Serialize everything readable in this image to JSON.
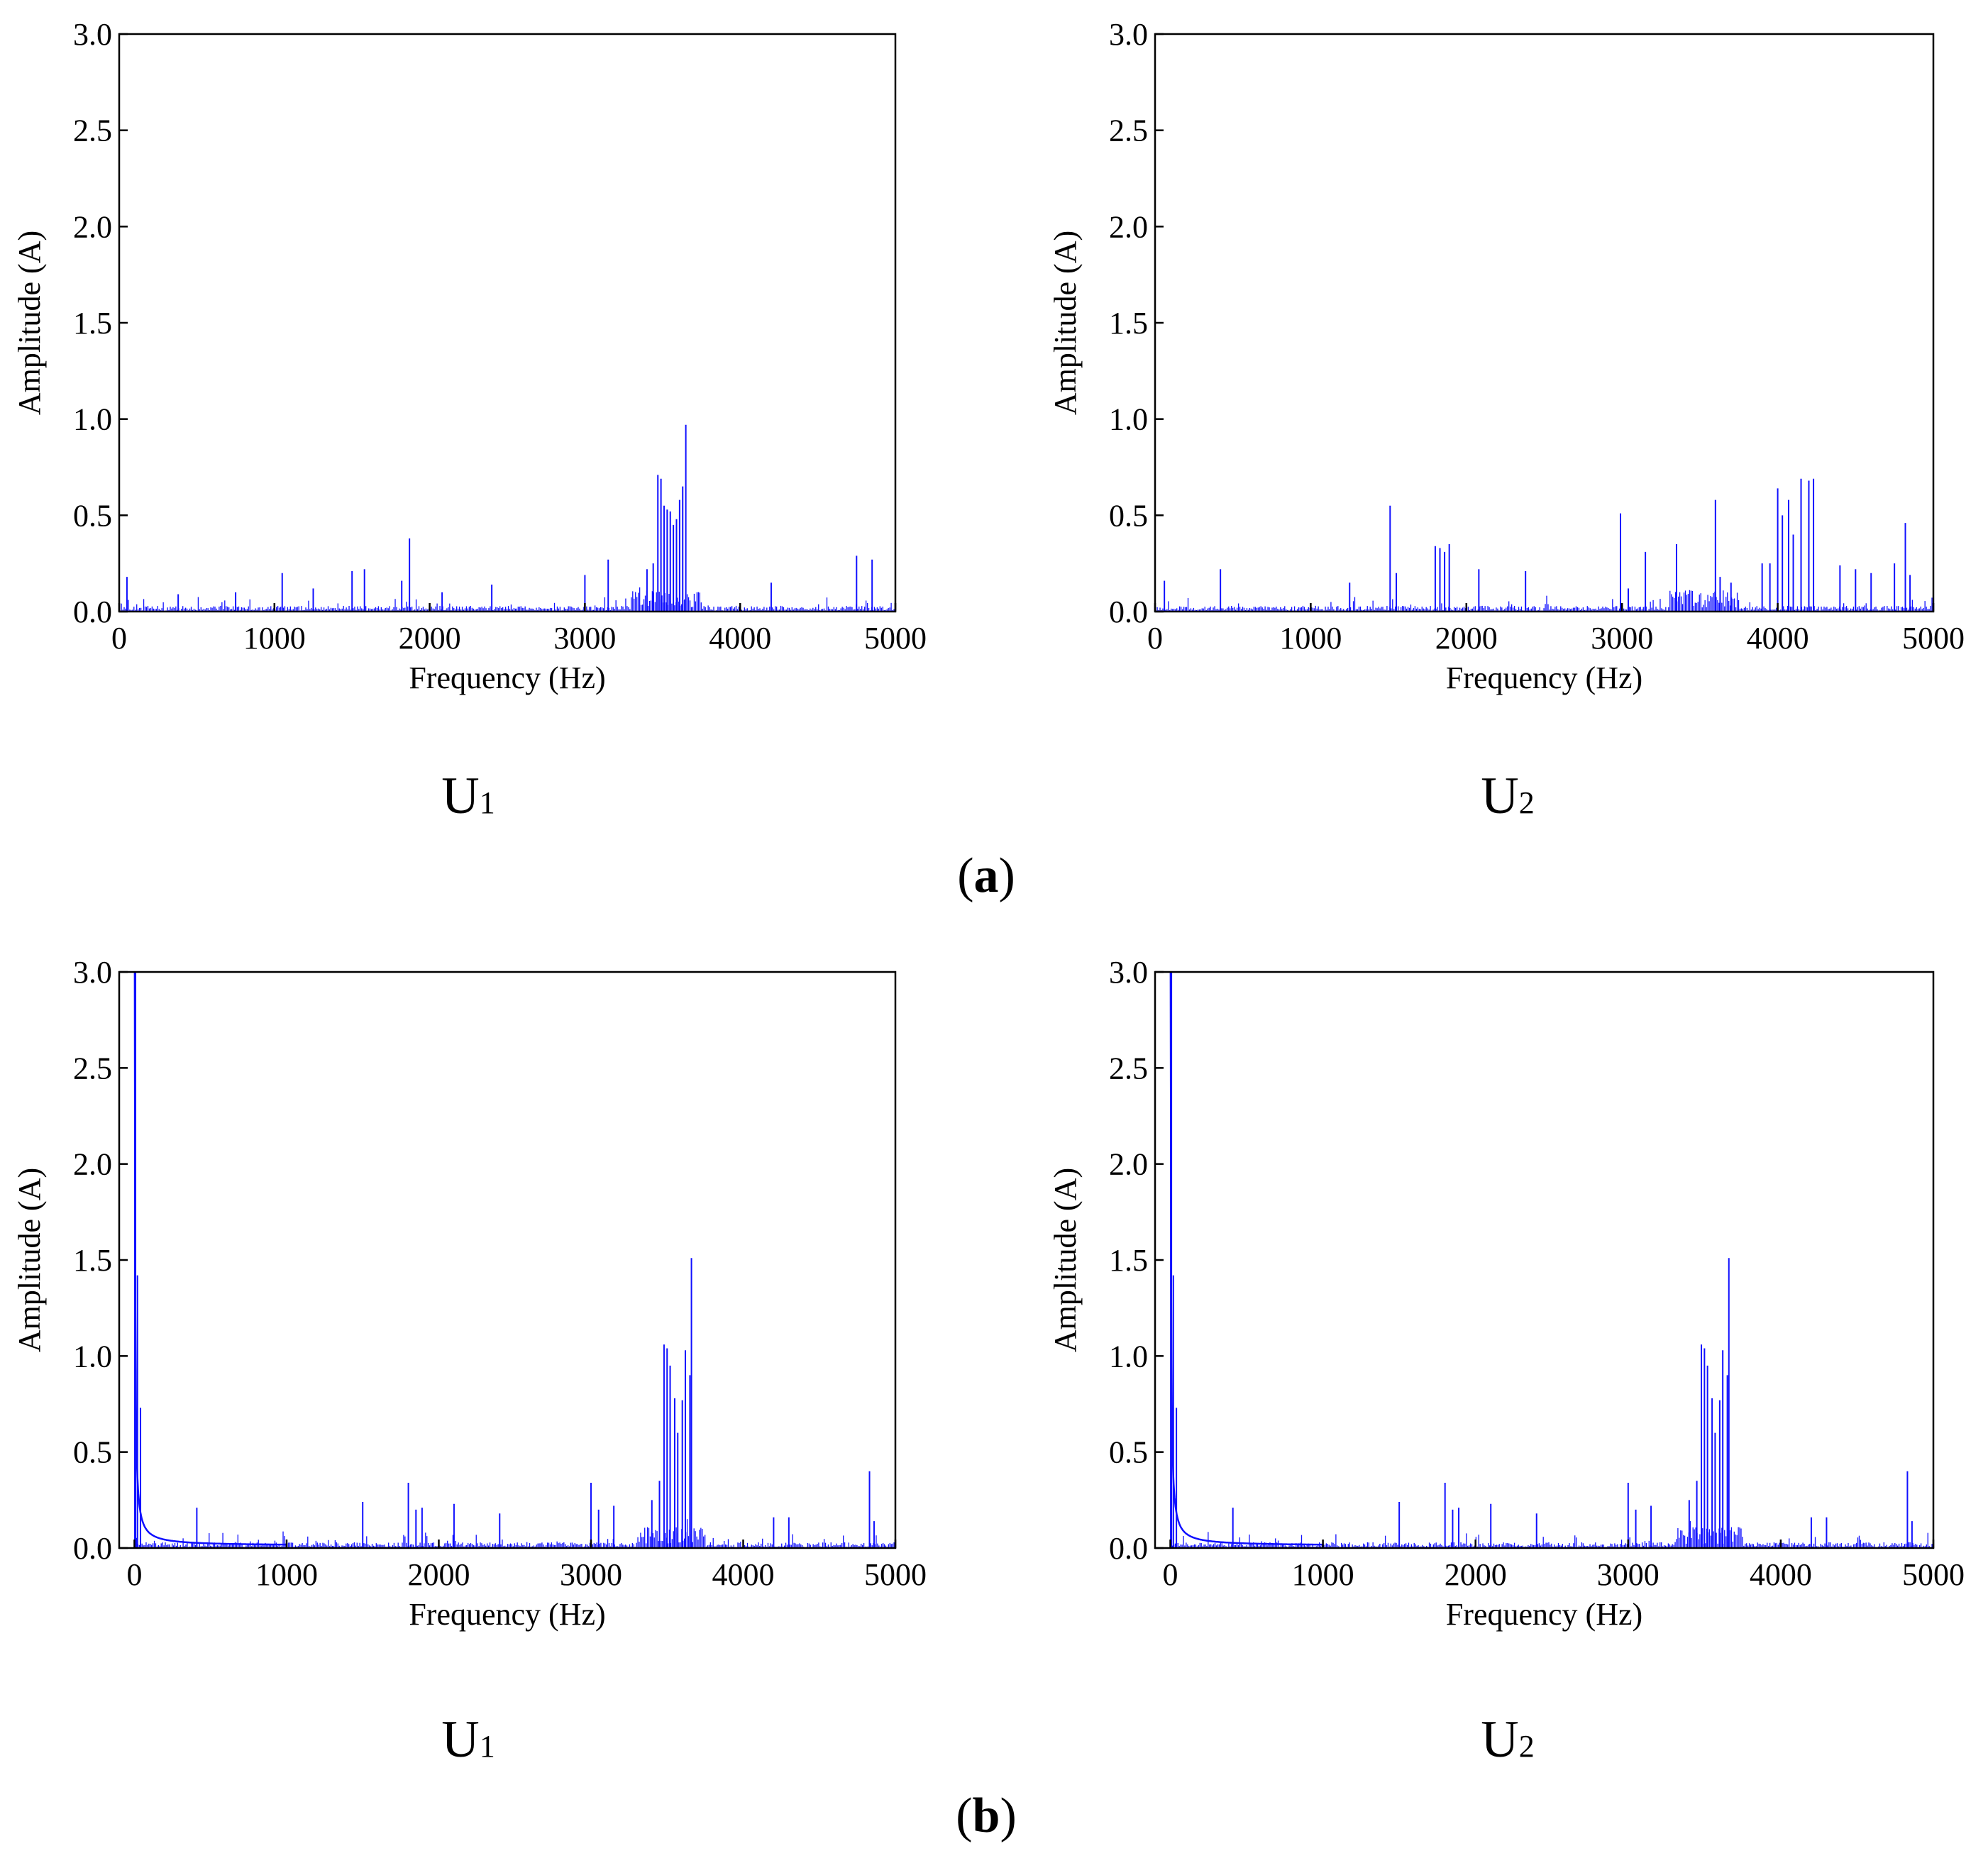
{
  "colors": {
    "spectrum": "#1010ff",
    "axis": "#000000"
  },
  "panels": {
    "a": {
      "label_open": "(",
      "label_letter": "a",
      "label_close": ")"
    },
    "b": {
      "label_open": "(",
      "label_letter": "b",
      "label_close": ")"
    }
  },
  "chart_data": [
    {
      "id": "a-U1",
      "type": "bar",
      "title": "",
      "caption_main": "U",
      "caption_sub": "1",
      "xlabel": "Frequency (Hz)",
      "ylabel": "Amplitude (A)",
      "xlim": [
        0,
        5000
      ],
      "ylim": [
        0,
        3.0
      ],
      "xticks": [
        "0",
        "1000",
        "2000",
        "3000",
        "4000",
        "5000"
      ],
      "yticks": [
        "0.0",
        "0.5",
        "1.0",
        "1.5",
        "2.0",
        "2.5",
        "3.0"
      ],
      "has_dc_decay": false,
      "x": [
        50,
        380,
        750,
        1050,
        1250,
        1500,
        1580,
        1820,
        1870,
        2080,
        2400,
        3000,
        3150,
        3400,
        3440,
        3470,
        3490,
        3510,
        3530,
        3550,
        3570,
        3590,
        3610,
        3630,
        3650,
        4200,
        4750,
        4850
      ],
      "values": [
        0.18,
        0.09,
        0.1,
        0.2,
        0.12,
        0.21,
        0.22,
        0.16,
        0.38,
        0.1,
        0.14,
        0.19,
        0.27,
        0.22,
        0.25,
        0.71,
        0.69,
        0.55,
        0.53,
        0.52,
        0.45,
        0.48,
        0.58,
        0.65,
        0.97,
        0.15,
        0.29,
        0.27
      ]
    },
    {
      "id": "a-U2",
      "type": "bar",
      "title": "",
      "caption_main": "U",
      "caption_sub": "2",
      "xlabel": "Frequency (Hz)",
      "ylabel": "Amplitude (A)",
      "xlim": [
        0,
        5000
      ],
      "ylim": [
        0,
        3.0
      ],
      "xticks": [
        "0",
        "1000",
        "2000",
        "3000",
        "4000",
        "5000"
      ],
      "yticks": [
        "0.0",
        "0.5",
        "1.0",
        "1.5",
        "2.0",
        "2.5",
        "3.0"
      ],
      "has_dc_decay": false,
      "x": [
        60,
        420,
        1250,
        1510,
        1550,
        1800,
        1830,
        1860,
        1890,
        2080,
        2380,
        2990,
        3040,
        3150,
        3350,
        3600,
        3630,
        3700,
        3900,
        3950,
        4000,
        4030,
        4070,
        4100,
        4150,
        4200,
        4230,
        4400,
        4500,
        4600,
        4750,
        4820,
        4850
      ],
      "values": [
        0.16,
        0.22,
        0.15,
        0.55,
        0.2,
        0.34,
        0.33,
        0.31,
        0.35,
        0.22,
        0.21,
        0.51,
        0.12,
        0.31,
        0.35,
        0.58,
        0.18,
        0.15,
        0.25,
        0.25,
        0.64,
        0.5,
        0.58,
        0.4,
        0.69,
        0.68,
        0.69,
        0.24,
        0.22,
        0.2,
        0.25,
        0.46,
        0.19
      ]
    },
    {
      "id": "b-U1",
      "type": "bar",
      "title": "",
      "caption_main": "U",
      "caption_sub": "1",
      "xlabel": "Frequency (Hz)",
      "ylabel": "Amplitude (A)",
      "xlim": [
        -100,
        5000
      ],
      "ylim": [
        0,
        3.0
      ],
      "xticks": [
        "0",
        "1000",
        "2000",
        "3000",
        "4000",
        "5000"
      ],
      "yticks": [
        "0.0",
        "0.5",
        "1.0",
        "1.5",
        "2.0",
        "2.5",
        "3.0"
      ],
      "has_dc_decay": true,
      "dc_peak": 3.0,
      "x": [
        20,
        40,
        410,
        1500,
        1800,
        1850,
        1890,
        2100,
        2400,
        3000,
        3050,
        3150,
        3400,
        3450,
        3480,
        3500,
        3520,
        3550,
        3570,
        3600,
        3620,
        3650,
        3660,
        4200,
        4300,
        4830,
        4860
      ],
      "values": [
        1.42,
        0.73,
        0.21,
        0.24,
        0.34,
        0.2,
        0.21,
        0.23,
        0.18,
        0.34,
        0.2,
        0.22,
        0.25,
        0.35,
        1.06,
        1.04,
        0.95,
        0.78,
        0.6,
        0.77,
        1.03,
        0.9,
        1.51,
        0.16,
        0.16,
        0.4,
        0.14
      ]
    },
    {
      "id": "b-U2",
      "type": "bar",
      "title": "",
      "caption_main": "U",
      "caption_sub": "2",
      "xlabel": "Frequency (Hz)",
      "ylabel": "Amplitude (A)",
      "xlim": [
        -100,
        5000
      ],
      "ylim": [
        0,
        3.0
      ],
      "xticks": [
        "0",
        "1000",
        "2000",
        "3000",
        "4000",
        "5000"
      ],
      "yticks": [
        "0.0",
        "0.5",
        "1.0",
        "1.5",
        "2.0",
        "2.5",
        "3.0"
      ],
      "has_dc_decay": true,
      "dc_peak": 3.0,
      "x": [
        20,
        40,
        410,
        1500,
        1800,
        1850,
        1890,
        2100,
        2400,
        3000,
        3050,
        3150,
        3400,
        3450,
        3480,
        3500,
        3520,
        3550,
        3570,
        3600,
        3620,
        3650,
        3660,
        4200,
        4300,
        4830,
        4860
      ],
      "values": [
        1.42,
        0.73,
        0.21,
        0.24,
        0.34,
        0.2,
        0.21,
        0.23,
        0.18,
        0.34,
        0.2,
        0.22,
        0.25,
        0.35,
        1.06,
        1.04,
        0.95,
        0.78,
        0.6,
        0.77,
        1.03,
        0.9,
        1.51,
        0.16,
        0.16,
        0.4,
        0.14
      ]
    }
  ]
}
